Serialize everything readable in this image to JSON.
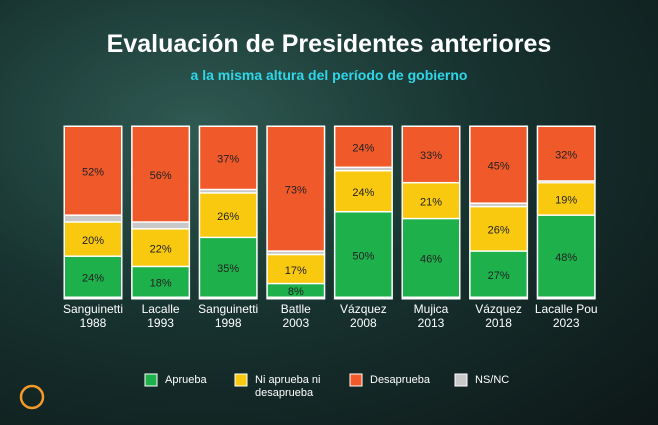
{
  "chart_data": {
    "type": "stacked-bar",
    "title": "Evaluación de Presidentes anteriores",
    "subtitle": "a la misma altura del período de gobierno",
    "categories": [
      "Sanguinetti\n1988",
      "Lacalle\n1993",
      "Sanguinetti\n1998",
      "Batlle\n2003",
      "Vázquez\n2008",
      "Mujica\n2013",
      "Vázquez\n2018",
      "Lacalle Pou\n2023"
    ],
    "ylim": [
      0,
      100
    ],
    "series": [
      {
        "name": "Aprueba",
        "color": "#1db04b",
        "values": [
          24,
          18,
          35,
          8,
          50,
          46,
          27,
          48
        ],
        "value_labels": [
          "24%",
          "18%",
          "35%",
          "8%",
          "50%",
          "46%",
          "27%",
          "48%"
        ]
      },
      {
        "name": "Ni aprueba ni\ndesaprueba",
        "color": "#f8c90f",
        "values": [
          20,
          22,
          26,
          17,
          24,
          21,
          26,
          19
        ],
        "value_labels": [
          "20%",
          "22%",
          "26%",
          "17%",
          "24%",
          "21%",
          "26%",
          "19%"
        ]
      },
      {
        "name": "Desaprueba",
        "color": "#f0592a",
        "values": [
          52,
          56,
          37,
          73,
          24,
          33,
          45,
          32
        ],
        "value_labels": [
          "52%",
          "56%",
          "37%",
          "73%",
          "24%",
          "33%",
          "45%",
          "32%"
        ]
      },
      {
        "name": "NS/NC",
        "color": "#c9c9c9",
        "values": [
          4,
          4,
          2,
          2,
          2,
          0,
          2,
          1
        ]
      }
    ]
  }
}
